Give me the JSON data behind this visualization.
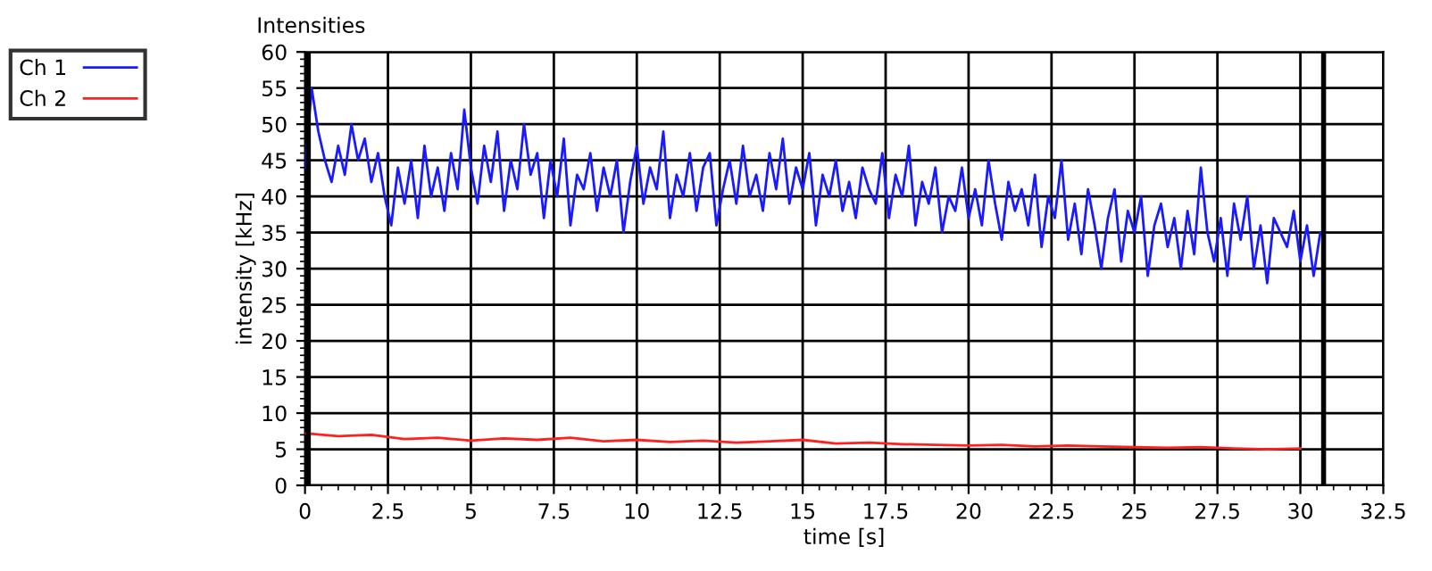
{
  "chart_data": {
    "type": "line",
    "title": "Intensities",
    "xlabel": "time [s]",
    "ylabel": "intensity [kHz]",
    "series": [
      {
        "name": "Ch 1",
        "color": "#1a1aff",
        "x": [
          0,
          0.2,
          0.4,
          0.6,
          0.8,
          1,
          1.2,
          1.4,
          1.6,
          1.8,
          2,
          2.2,
          2.4,
          2.6,
          2.8,
          3,
          3.2,
          3.4,
          3.6,
          3.8,
          4,
          4.2,
          4.4,
          4.6,
          4.8,
          5,
          5.2,
          5.4,
          5.6,
          5.8,
          6,
          6.2,
          6.4,
          6.6,
          6.8,
          7,
          7.2,
          7.4,
          7.6,
          7.8,
          8,
          8.2,
          8.4,
          8.6,
          8.8,
          9,
          9.2,
          9.4,
          9.6,
          9.8,
          10,
          10.2,
          10.4,
          10.6,
          10.8,
          11,
          11.2,
          11.4,
          11.6,
          11.8,
          12,
          12.2,
          12.4,
          12.6,
          12.8,
          13,
          13.2,
          13.4,
          13.6,
          13.8,
          14,
          14.2,
          14.4,
          14.6,
          14.8,
          15,
          15.2,
          15.4,
          15.6,
          15.8,
          16,
          16.2,
          16.4,
          16.6,
          16.8,
          17,
          17.2,
          17.4,
          17.6,
          17.8,
          18,
          18.2,
          18.4,
          18.6,
          18.8,
          19,
          19.2,
          19.4,
          19.6,
          19.8,
          20,
          20.2,
          20.4,
          20.6,
          20.8,
          21,
          21.2,
          21.4,
          21.6,
          21.8,
          22,
          22.2,
          22.4,
          22.6,
          22.8,
          23,
          23.2,
          23.4,
          23.6,
          23.8,
          24,
          24.2,
          24.4,
          24.6,
          24.8,
          25,
          25.2,
          25.4,
          25.6,
          25.8,
          26,
          26.2,
          26.4,
          26.6,
          26.8,
          27,
          27.2,
          27.4,
          27.6,
          27.8,
          28,
          28.2,
          28.4,
          28.6,
          28.8,
          29,
          29.2,
          29.4,
          29.6,
          29.8,
          30,
          30.2,
          30.4,
          30.6
        ],
        "values": [
          44,
          55,
          49,
          45,
          42,
          47,
          43,
          50,
          45,
          48,
          42,
          46,
          40,
          36,
          44,
          39,
          45,
          37,
          47,
          40,
          44,
          38,
          46,
          41,
          52,
          44,
          39,
          47,
          42,
          49,
          38,
          45,
          41,
          50,
          43,
          46,
          37,
          45,
          40,
          48,
          36,
          43,
          41,
          46,
          38,
          44,
          40,
          45,
          35,
          42,
          47,
          39,
          44,
          41,
          49,
          37,
          43,
          40,
          46,
          38,
          44,
          46,
          36,
          41,
          45,
          39,
          47,
          40,
          43,
          38,
          46,
          41,
          48,
          39,
          44,
          41,
          46,
          36,
          43,
          40,
          45,
          38,
          42,
          37,
          44,
          41,
          39,
          46,
          37,
          43,
          40,
          47,
          36,
          42,
          39,
          44,
          35,
          40,
          38,
          44,
          37,
          41,
          36,
          45,
          39,
          34,
          42,
          38,
          41,
          36,
          43,
          33,
          40,
          37,
          45,
          34,
          39,
          32,
          41,
          36,
          30,
          37,
          41,
          31,
          38,
          35,
          40,
          29,
          36,
          39,
          33,
          37,
          30,
          38,
          32,
          44,
          35,
          31,
          37,
          29,
          39,
          34,
          40,
          30,
          36,
          28,
          37,
          35,
          33,
          38,
          31,
          36,
          29,
          35
        ]
      },
      {
        "name": "Ch 2",
        "color": "#ff2020",
        "x": [
          0,
          1,
          2,
          3,
          4,
          5,
          6,
          7,
          8,
          9,
          10,
          11,
          12,
          13,
          14,
          15,
          16,
          17,
          18,
          19,
          20,
          21,
          22,
          23,
          24,
          25,
          26,
          27,
          28,
          29,
          30
        ],
        "values": [
          7.2,
          6.8,
          7.0,
          6.4,
          6.6,
          6.2,
          6.5,
          6.3,
          6.6,
          6.1,
          6.3,
          6.0,
          6.2,
          5.9,
          6.1,
          6.3,
          5.8,
          5.9,
          5.7,
          5.6,
          5.5,
          5.6,
          5.4,
          5.5,
          5.4,
          5.3,
          5.2,
          5.3,
          5.1,
          5.0,
          5.1
        ]
      }
    ],
    "xlim": [
      0,
      32.5
    ],
    "xticks": [
      0,
      2.5,
      5,
      7.5,
      10,
      12.5,
      15,
      17.5,
      20,
      22.5,
      25,
      27.5,
      30,
      32.5
    ],
    "ylim": [
      0,
      60
    ],
    "yticks": [
      0,
      5,
      10,
      15,
      20,
      25,
      30,
      35,
      40,
      45,
      50,
      55,
      60
    ],
    "grid": true,
    "legend": "top left",
    "ref_lines": [
      {
        "axis": "x",
        "value": 0.1,
        "color": "#000000"
      },
      {
        "axis": "x",
        "value": 30.7,
        "color": "#000000"
      }
    ]
  }
}
